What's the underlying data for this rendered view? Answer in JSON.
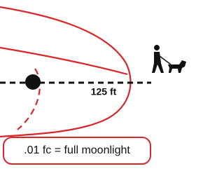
{
  "distance_label": "125 ft",
  "caption": ".01 fc = full moonlight"
}
